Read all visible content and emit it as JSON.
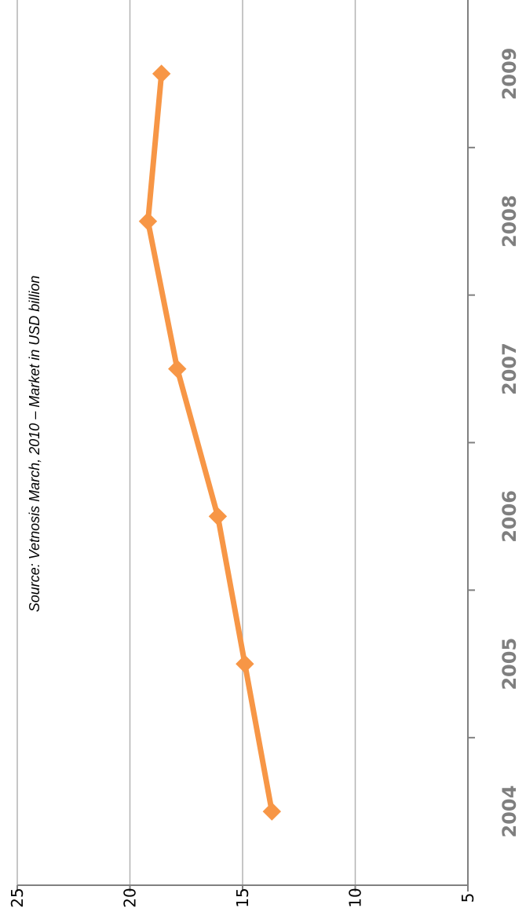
{
  "chart_data": {
    "type": "line",
    "orientation": "rotated-90-clockwise",
    "categories": [
      "2004",
      "2005",
      "2006",
      "2007",
      "2008",
      "2009"
    ],
    "series": [
      {
        "values": [
          13.7,
          14.9,
          16.1,
          17.9,
          19.2,
          18.6
        ],
        "color": "#f79646"
      }
    ],
    "title": "",
    "xlabel": "",
    "ylabel": "",
    "ylim": [
      5,
      25
    ],
    "yticks": [
      5,
      10,
      15,
      20,
      25
    ],
    "grid": true,
    "gridColor": "#b3b3b3",
    "axisColor": "#808080",
    "marker": "diamond",
    "annotation": "Source: Vetnosis March, 2010 – Market in USD billion"
  }
}
